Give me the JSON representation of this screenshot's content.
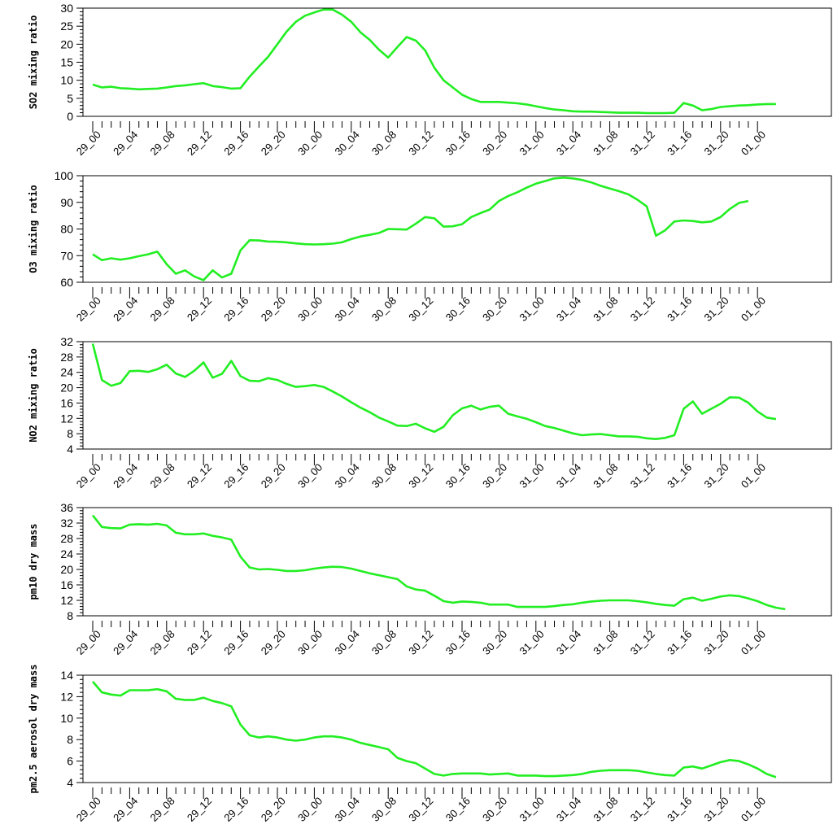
{
  "time_labels": [
    "29_00",
    "29_04",
    "29_08",
    "29_12",
    "29_16",
    "29_20",
    "30_00",
    "30_04",
    "30_08",
    "30_12",
    "30_16",
    "30_20",
    "31_00",
    "31_04",
    "31_08",
    "31_12",
    "31_16",
    "31_20",
    "01_00"
  ],
  "line_color": "#22ee22",
  "chart_data": [
    {
      "type": "line",
      "ylabel": "SO2 mixing ratio",
      "ylim": [
        0,
        30
      ],
      "yticks": [
        0,
        5,
        10,
        15,
        20,
        25,
        30
      ],
      "series": [
        {
          "values": [
            8.8,
            8,
            8.2,
            7.8,
            7.7,
            7.5,
            7.6,
            7.7,
            8,
            8.4,
            8.6,
            8.9,
            9.2,
            8.4,
            8.1,
            7.7,
            7.8,
            11,
            13.8,
            16.5,
            20,
            23.5,
            26.2,
            27.9,
            28.8,
            29.6,
            29.6,
            28.2,
            26.2,
            23.3,
            21.2,
            18.5,
            16.3,
            19.2,
            22,
            21,
            18.3,
            13.5,
            10,
            8,
            6,
            4.8,
            4,
            4,
            4,
            3.8,
            3.6,
            3.3,
            2.8,
            2.3,
            1.9,
            1.7,
            1.4,
            1.3,
            1.3,
            1.2,
            1.1,
            1,
            1,
            1,
            0.9,
            0.9,
            0.9,
            1,
            3.7,
            3,
            1.7,
            2,
            2.6,
            2.8,
            3,
            3.1,
            3.3,
            3.4,
            3.4
          ]
        }
      ]
    },
    {
      "type": "line",
      "ylabel": "O3 mixing ratio",
      "ylim": [
        60,
        100
      ],
      "yticks": [
        60,
        70,
        80,
        90,
        100
      ],
      "series": [
        {
          "values": [
            70.5,
            68.3,
            69,
            68.5,
            69,
            69.8,
            70.5,
            71.5,
            66.8,
            63.2,
            64.5,
            62.2,
            60.8,
            64.5,
            61.8,
            63.2,
            72,
            75.8,
            75.7,
            75.3,
            75.2,
            75,
            74.6,
            74.3,
            74.2,
            74.3,
            74.5,
            75,
            76.2,
            77.2,
            77.8,
            78.5,
            80,
            79.9,
            79.8,
            82,
            84.5,
            84,
            80.9,
            81,
            81.8,
            84.5,
            86,
            87.3,
            90.5,
            92.4,
            93.8,
            95.5,
            97,
            98,
            99,
            99.3,
            99,
            98.4,
            97.5,
            96.2,
            95.2,
            94.2,
            93,
            91,
            88.5,
            77.5,
            79.5,
            82.8,
            83.2,
            83,
            82.5,
            82.8,
            84.5,
            87.5,
            89.8,
            90.5
          ]
        }
      ]
    },
    {
      "type": "line",
      "ylabel": "NO2 mixing ratio",
      "ylim": [
        4,
        32
      ],
      "yticks": [
        4,
        8,
        12,
        16,
        20,
        24,
        28,
        32
      ],
      "series": [
        {
          "values": [
            31.5,
            22,
            20.5,
            21.2,
            24.3,
            24.4,
            24.1,
            24.8,
            26,
            23.7,
            22.8,
            24.4,
            26.6,
            22.6,
            23.6,
            27,
            23,
            21.8,
            21.7,
            22.5,
            22,
            21,
            20.2,
            20.4,
            20.7,
            20.2,
            19,
            17.7,
            16.2,
            14.8,
            13.6,
            12.2,
            11.2,
            10.1,
            10,
            10.6,
            9.4,
            8.5,
            9.8,
            12.8,
            14.6,
            15.3,
            14.3,
            15,
            15.3,
            13.2,
            12.5,
            11.9,
            11,
            10,
            9.5,
            8.8,
            8.1,
            7.6,
            7.8,
            7.9,
            7.6,
            7.3,
            7.3,
            7.2,
            6.8,
            6.6,
            6.9,
            7.6,
            14.5,
            16.4,
            13.2,
            14.5,
            15.8,
            17.5,
            17.4,
            16.1,
            13.8,
            12.2,
            11.8
          ]
        }
      ]
    },
    {
      "type": "line",
      "ylabel": "pm10 dry mass",
      "ylim": [
        8,
        36
      ],
      "yticks": [
        8,
        12,
        16,
        20,
        24,
        28,
        32,
        36
      ],
      "series": [
        {
          "values": [
            34,
            31,
            30.7,
            30.6,
            31.6,
            31.7,
            31.6,
            31.8,
            31.4,
            29.5,
            29.1,
            29.1,
            29.3,
            28.7,
            28.3,
            27.7,
            23.3,
            20.5,
            20,
            20.1,
            19.9,
            19.6,
            19.6,
            19.8,
            20.2,
            20.5,
            20.7,
            20.6,
            20.2,
            19.6,
            19,
            18.5,
            18,
            17.5,
            15.6,
            14.8,
            14.5,
            13.2,
            11.8,
            11.4,
            11.7,
            11.6,
            11.4,
            10.9,
            10.9,
            10.9,
            10.3,
            10.3,
            10.3,
            10.3,
            10.5,
            10.8,
            11,
            11.4,
            11.7,
            11.9,
            12,
            12,
            12,
            11.8,
            11.5,
            11.1,
            10.8,
            10.6,
            12.3,
            12.7,
            11.9,
            12.4,
            13,
            13.3,
            13.1,
            12.5,
            11.8,
            10.8,
            10.1,
            9.7
          ]
        }
      ]
    },
    {
      "type": "line",
      "ylabel": "pm2.5 aerosol dry mass",
      "ylim": [
        4,
        14
      ],
      "yticks": [
        4,
        6,
        8,
        10,
        12,
        14
      ],
      "series": [
        {
          "values": [
            13.4,
            12.4,
            12.2,
            12.1,
            12.6,
            12.6,
            12.6,
            12.7,
            12.5,
            11.8,
            11.7,
            11.7,
            11.9,
            11.6,
            11.4,
            11.1,
            9.4,
            8.4,
            8.2,
            8.3,
            8.2,
            8,
            7.9,
            8,
            8.2,
            8.3,
            8.3,
            8.2,
            8,
            7.7,
            7.5,
            7.3,
            7.1,
            6.3,
            6,
            5.8,
            5.3,
            4.8,
            4.65,
            4.8,
            4.85,
            4.85,
            4.85,
            4.75,
            4.8,
            4.85,
            4.65,
            4.65,
            4.65,
            4.6,
            4.6,
            4.65,
            4.7,
            4.8,
            5,
            5.1,
            5.15,
            5.15,
            5.15,
            5.1,
            4.95,
            4.8,
            4.7,
            4.65,
            5.4,
            5.5,
            5.3,
            5.6,
            5.9,
            6.1,
            6,
            5.7,
            5.3,
            4.8,
            4.5
          ]
        }
      ]
    }
  ]
}
